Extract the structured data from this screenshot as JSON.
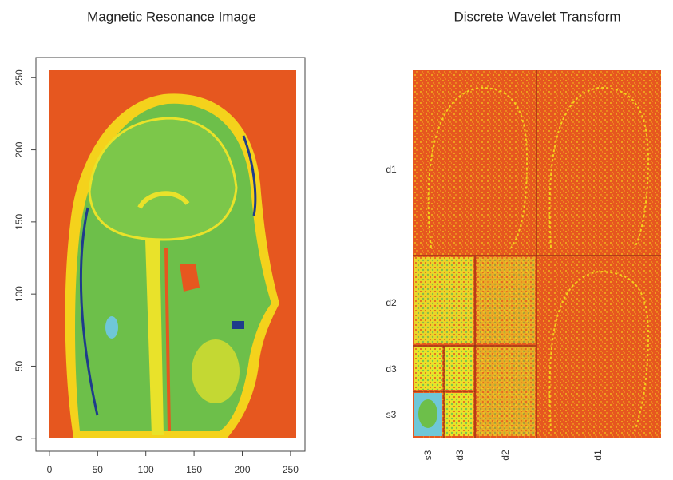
{
  "chart_data": [
    {
      "type": "image",
      "title": "Magnetic Resonance Image",
      "xlim": [
        -14,
        265
      ],
      "ylim": [
        -9,
        264
      ],
      "xticks": [
        0,
        50,
        100,
        150,
        200,
        250
      ],
      "yticks": [
        0,
        50,
        100,
        150,
        200,
        250
      ]
    },
    {
      "type": "wavelet",
      "title": "Discrete Wavelet Transform",
      "row_labels": [
        "d1",
        "d2",
        "d3",
        "s3"
      ],
      "column_labels": [
        "s3",
        "d3",
        "d2",
        "d1"
      ]
    }
  ]
}
